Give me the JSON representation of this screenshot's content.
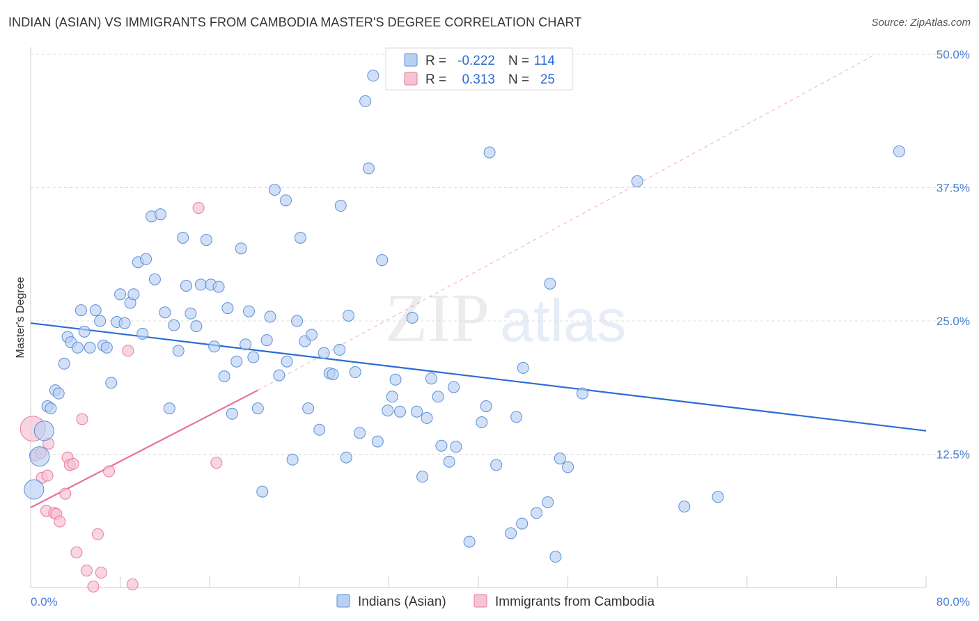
{
  "title": "INDIAN (ASIAN) VS IMMIGRANTS FROM CAMBODIA MASTER'S DEGREE CORRELATION CHART",
  "source": "Source: ZipAtlas.com",
  "watermark": {
    "zip": "ZIP",
    "atlas": "atlas"
  },
  "colors": {
    "blue": "#5b8fd9",
    "blue_fill": "#b8d0f2",
    "pink": "#e87aa0",
    "pink_fill": "#f6c3d4",
    "trend_blue": "#2a6cd6",
    "trend_pink": "#e8729a"
  },
  "chart_data": {
    "type": "scatter",
    "ylabel": "Master's Degree",
    "xlim": [
      0,
      80
    ],
    "ylim": [
      0,
      50
    ],
    "x_tick_labels": [
      "0.0%",
      "80.0%"
    ],
    "y_ticks": [
      12.5,
      25.0,
      37.5,
      50.0
    ],
    "y_tick_labels": [
      "12.5%",
      "25.0%",
      "37.5%",
      "50.0%"
    ],
    "legend": {
      "rows": [
        {
          "r_label": "R =",
          "r_value": "-0.222",
          "n_label": "N =",
          "n_value": "114"
        },
        {
          "r_label": "R =",
          "r_value": "0.313",
          "n_label": "N =",
          "n_value": "25"
        }
      ]
    },
    "series": [
      {
        "name": "Indians (Asian)",
        "trend": {
          "x": [
            0,
            80
          ],
          "y": [
            24.8,
            14.7
          ]
        },
        "points": [
          [
            0.3,
            9.2
          ],
          [
            1.2,
            14.7
          ],
          [
            0.8,
            12.3
          ],
          [
            1.5,
            17.0
          ],
          [
            1.8,
            16.8
          ],
          [
            2.2,
            18.5
          ],
          [
            2.5,
            18.2
          ],
          [
            3.0,
            21.0
          ],
          [
            3.3,
            23.5
          ],
          [
            3.6,
            23.0
          ],
          [
            4.2,
            22.5
          ],
          [
            4.5,
            26.0
          ],
          [
            4.8,
            24.0
          ],
          [
            5.3,
            22.5
          ],
          [
            5.8,
            26.0
          ],
          [
            6.2,
            25.0
          ],
          [
            6.5,
            22.7
          ],
          [
            6.8,
            22.5
          ],
          [
            7.2,
            19.2
          ],
          [
            7.7,
            24.9
          ],
          [
            8.0,
            27.5
          ],
          [
            8.4,
            24.8
          ],
          [
            8.9,
            26.7
          ],
          [
            9.2,
            27.5
          ],
          [
            9.6,
            30.5
          ],
          [
            10.0,
            23.8
          ],
          [
            10.3,
            30.8
          ],
          [
            11.1,
            28.9
          ],
          [
            10.8,
            34.8
          ],
          [
            11.6,
            35.0
          ],
          [
            12.0,
            25.8
          ],
          [
            12.4,
            16.8
          ],
          [
            12.8,
            24.6
          ],
          [
            13.2,
            22.2
          ],
          [
            13.6,
            32.8
          ],
          [
            13.9,
            28.3
          ],
          [
            14.3,
            25.7
          ],
          [
            14.8,
            24.5
          ],
          [
            15.2,
            28.4
          ],
          [
            15.7,
            32.6
          ],
          [
            16.1,
            28.4
          ],
          [
            16.4,
            22.6
          ],
          [
            16.8,
            28.2
          ],
          [
            17.3,
            19.8
          ],
          [
            17.6,
            26.2
          ],
          [
            18.0,
            16.3
          ],
          [
            18.4,
            21.2
          ],
          [
            18.8,
            31.8
          ],
          [
            19.2,
            22.8
          ],
          [
            19.5,
            25.9
          ],
          [
            19.9,
            21.6
          ],
          [
            20.3,
            16.8
          ],
          [
            20.7,
            9.0
          ],
          [
            21.1,
            23.2
          ],
          [
            21.4,
            25.4
          ],
          [
            21.8,
            37.3
          ],
          [
            22.2,
            19.9
          ],
          [
            22.8,
            36.3
          ],
          [
            22.9,
            21.2
          ],
          [
            23.4,
            12.0
          ],
          [
            23.8,
            25.0
          ],
          [
            24.1,
            32.8
          ],
          [
            24.5,
            23.1
          ],
          [
            24.8,
            16.8
          ],
          [
            25.1,
            23.7
          ],
          [
            25.8,
            14.8
          ],
          [
            26.2,
            22.0
          ],
          [
            26.7,
            20.1
          ],
          [
            27.0,
            20.0
          ],
          [
            27.7,
            35.8
          ],
          [
            27.6,
            22.3
          ],
          [
            28.2,
            12.2
          ],
          [
            28.4,
            25.5
          ],
          [
            29.0,
            20.2
          ],
          [
            29.4,
            14.5
          ],
          [
            29.9,
            45.6
          ],
          [
            30.2,
            39.3
          ],
          [
            30.6,
            48.0
          ],
          [
            31.0,
            13.7
          ],
          [
            31.4,
            30.7
          ],
          [
            31.9,
            16.6
          ],
          [
            32.3,
            17.9
          ],
          [
            32.6,
            19.5
          ],
          [
            33.0,
            16.5
          ],
          [
            34.1,
            25.3
          ],
          [
            34.5,
            16.5
          ],
          [
            35.0,
            10.4
          ],
          [
            35.4,
            15.9
          ],
          [
            35.8,
            19.6
          ],
          [
            36.4,
            17.9
          ],
          [
            36.7,
            13.3
          ],
          [
            37.4,
            11.8
          ],
          [
            37.8,
            18.8
          ],
          [
            38.0,
            13.2
          ],
          [
            39.2,
            4.3
          ],
          [
            40.3,
            15.5
          ],
          [
            40.7,
            17.0
          ],
          [
            41.0,
            40.8
          ],
          [
            41.6,
            11.5
          ],
          [
            42.9,
            5.1
          ],
          [
            43.4,
            16.0
          ],
          [
            43.9,
            6.0
          ],
          [
            44.0,
            20.6
          ],
          [
            45.2,
            7.0
          ],
          [
            46.2,
            8.0
          ],
          [
            46.4,
            28.5
          ],
          [
            46.9,
            2.9
          ],
          [
            47.3,
            12.1
          ],
          [
            48.0,
            11.3
          ],
          [
            49.3,
            18.2
          ],
          [
            54.2,
            38.1
          ],
          [
            58.4,
            7.6
          ],
          [
            61.4,
            8.5
          ],
          [
            77.6,
            40.9
          ]
        ],
        "sizes": {
          "large_points": [
            [
              0.3,
              9.2
            ],
            [
              1.2,
              14.7
            ],
            [
              0.8,
              12.3
            ]
          ]
        }
      },
      {
        "name": "Immigrants from Cambodia",
        "trend": {
          "x": [
            0,
            20.3
          ],
          "y": [
            7.5,
            18.5
          ]
        },
        "trend_extended": {
          "x": [
            20.3,
            75.5
          ],
          "y": [
            18.5,
            50.0
          ]
        },
        "points": [
          [
            0.2,
            14.9
          ],
          [
            0.4,
            12.4
          ],
          [
            0.9,
            12.6
          ],
          [
            1.0,
            10.3
          ],
          [
            1.5,
            10.5
          ],
          [
            1.6,
            13.5
          ],
          [
            1.4,
            7.2
          ],
          [
            2.1,
            7.0
          ],
          [
            2.3,
            6.9
          ],
          [
            2.6,
            6.2
          ],
          [
            3.1,
            8.8
          ],
          [
            3.3,
            12.2
          ],
          [
            3.5,
            11.5
          ],
          [
            3.8,
            11.6
          ],
          [
            4.1,
            3.3
          ],
          [
            4.6,
            15.8
          ],
          [
            5.0,
            1.6
          ],
          [
            5.6,
            0.1
          ],
          [
            6.0,
            5.0
          ],
          [
            6.3,
            1.4
          ],
          [
            7.0,
            10.9
          ],
          [
            8.7,
            22.2
          ],
          [
            9.1,
            0.3
          ],
          [
            15.0,
            35.6
          ],
          [
            16.6,
            11.7
          ]
        ],
        "sizes": {
          "large_points": [
            [
              0.2,
              14.9
            ]
          ]
        }
      }
    ]
  }
}
